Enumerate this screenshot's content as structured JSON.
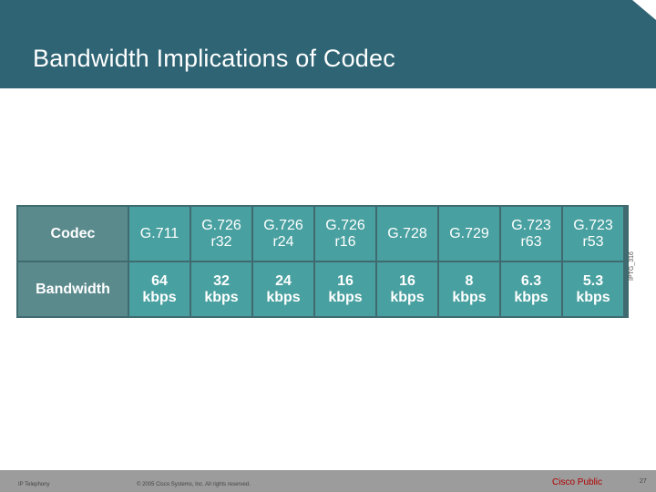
{
  "slide": {
    "title": "Bandwidth Implications of Codec"
  },
  "table": {
    "row_labels": [
      "Codec",
      "Bandwidth"
    ],
    "codecs": [
      {
        "name": [
          "G.711",
          ""
        ],
        "bw": [
          "64",
          "kbps"
        ]
      },
      {
        "name": [
          "G.726",
          "r32"
        ],
        "bw": [
          "32",
          "kbps"
        ]
      },
      {
        "name": [
          "G.726",
          "r24"
        ],
        "bw": [
          "24",
          "kbps"
        ]
      },
      {
        "name": [
          "G.726",
          "r16"
        ],
        "bw": [
          "16",
          "kbps"
        ]
      },
      {
        "name": [
          "G.728",
          ""
        ],
        "bw": [
          "16",
          "kbps"
        ]
      },
      {
        "name": [
          "G.729",
          ""
        ],
        "bw": [
          "8",
          "kbps"
        ]
      },
      {
        "name": [
          "G.723",
          "r63"
        ],
        "bw": [
          "6.3",
          "kbps"
        ]
      },
      {
        "name": [
          "G.723",
          "r53"
        ],
        "bw": [
          "5.3",
          "kbps"
        ]
      }
    ]
  },
  "side_code": "IPTG_316",
  "footer": {
    "left": "IP Telephony",
    "copyright": "© 2005 Cisco Systems, Inc. All rights reserved.",
    "classification": "Cisco Public",
    "page": "27"
  },
  "colors": {
    "header": "#2e6474",
    "table_border": "#3f6b70",
    "label_cell": "#5b8a8d",
    "data_cell": "#49a0a0",
    "footer": "#9c9c9c",
    "public_text": "#b00000"
  }
}
